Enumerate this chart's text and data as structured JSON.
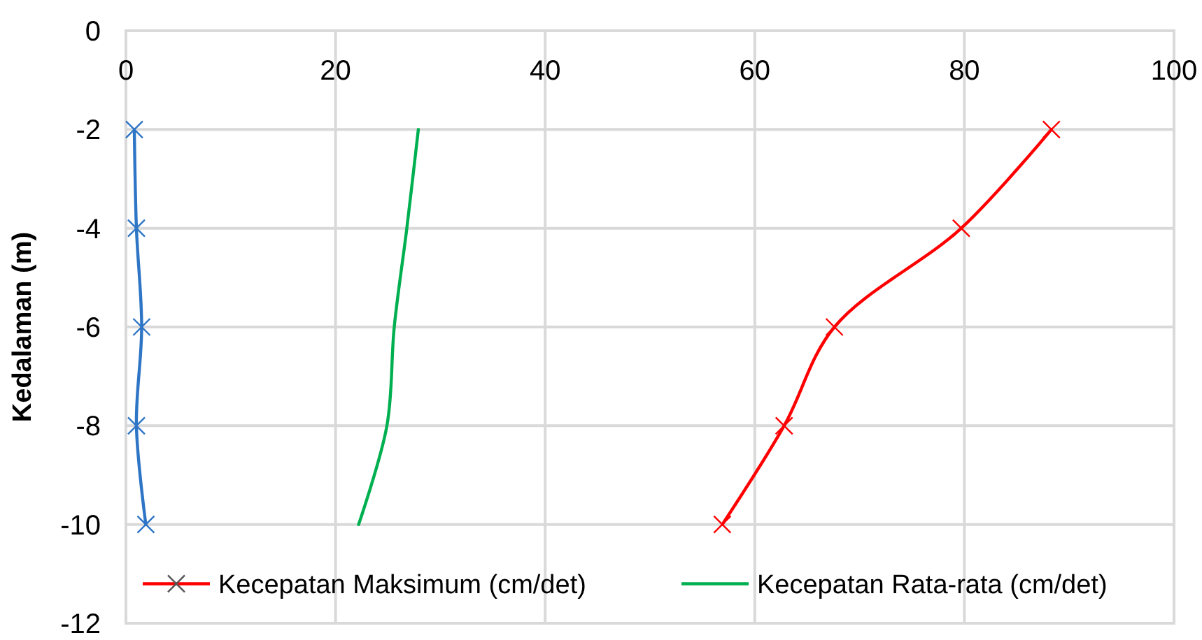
{
  "chart_data": {
    "type": "line",
    "ylabel": "Kedalaman (m)",
    "xlim": [
      0,
      100
    ],
    "xticks": [
      0,
      20,
      40,
      60,
      80,
      100
    ],
    "ylim": [
      -12,
      0
    ],
    "yticks": [
      -12,
      -10,
      -8,
      -6,
      -4,
      -2,
      0
    ],
    "grid": true,
    "legend": "bottom",
    "line_style": "solid",
    "series": [
      {
        "name": "Kecepatan Maksimum (cm/det)",
        "color": "#ff0000",
        "marker": "cross",
        "x": [
          88.3,
          79.7,
          67.6,
          62.8,
          56.9
        ],
        "values": [
          -2,
          -4,
          -6,
          -8,
          -10
        ]
      },
      {
        "name": "Kecepatan Rata-rata (cm/det)",
        "color": "#00b050",
        "marker": "none",
        "x": [
          27.9,
          26.8,
          25.6,
          24.9,
          22.2
        ],
        "values": [
          -2,
          -4,
          -6,
          -8,
          -10
        ]
      },
      {
        "color": "#2e75c6",
        "marker": "cross",
        "x": [
          0.8,
          1.0,
          1.5,
          1.0,
          1.9
        ],
        "values": [
          -2,
          -4,
          -6,
          -8,
          -10
        ]
      }
    ]
  }
}
